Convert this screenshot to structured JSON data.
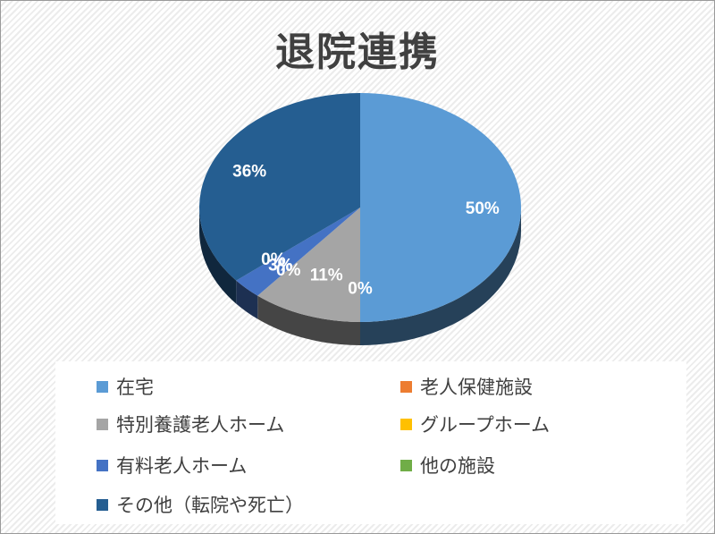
{
  "chart_data": {
    "type": "pie",
    "style": "3d",
    "title": "退院連携",
    "categories": [
      "在宅",
      "老人保健施設",
      "特別養護老人ホーム",
      "グループホーム",
      "有料老人ホーム",
      "他の施設",
      "その他（転院や死亡）"
    ],
    "values": [
      50,
      0,
      11,
      0,
      3,
      0,
      36
    ],
    "data_labels": [
      "50%",
      "0%",
      "11%",
      "0%",
      "3%",
      "0%",
      "36%"
    ],
    "colors": [
      "#5b9bd5",
      "#ed7d31",
      "#a5a5a5",
      "#ffc000",
      "#4472c4",
      "#70ad47",
      "#255e91"
    ],
    "legend_position": "bottom"
  },
  "legend": {
    "items": [
      {
        "label": "在宅",
        "color": "#5b9bd5"
      },
      {
        "label": "老人保健施設",
        "color": "#ed7d31"
      },
      {
        "label": "特別養護老人ホーム",
        "color": "#a5a5a5"
      },
      {
        "label": "グループホーム",
        "color": "#ffc000"
      },
      {
        "label": "有料老人ホーム",
        "color": "#4472c4"
      },
      {
        "label": "他の施設",
        "color": "#70ad47"
      },
      {
        "label": "その他（転院や死亡）",
        "color": "#255e91"
      }
    ]
  }
}
